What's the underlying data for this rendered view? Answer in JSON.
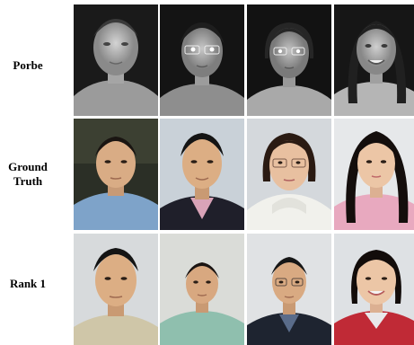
{
  "rows": [
    {
      "label": "Porbe"
    },
    {
      "label_line1": "Ground",
      "label_line2": "Truth"
    },
    {
      "label": "Rank 1"
    }
  ]
}
